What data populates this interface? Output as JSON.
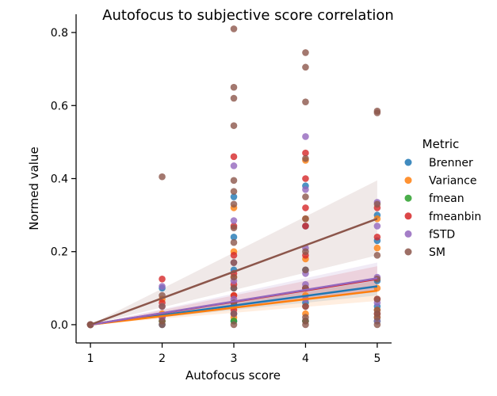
{
  "chart_data": {
    "type": "scatter",
    "title": "Autofocus to subjective score correlation",
    "xlabel": "Autofocus score",
    "ylabel": "Normed value",
    "xlim": [
      0.8,
      5.2
    ],
    "ylim": [
      -0.05,
      0.85
    ],
    "xticks": [
      "1",
      "2",
      "3",
      "4",
      "5"
    ],
    "yticks": [
      "0.0",
      "0.2",
      "0.4",
      "0.6",
      "0.8"
    ],
    "grid": false,
    "legend": {
      "title": "Metric",
      "placement": "right"
    },
    "series": [
      {
        "name": "Brenner",
        "color": "#1f77b4",
        "points": [
          [
            1,
            0
          ],
          [
            1,
            0
          ],
          [
            1,
            0
          ],
          [
            2,
            0.1
          ],
          [
            2,
            0.02
          ],
          [
            2,
            0.01
          ],
          [
            2,
            0
          ],
          [
            3,
            0.35
          ],
          [
            3,
            0.24
          ],
          [
            3,
            0.15
          ],
          [
            3,
            0.1
          ],
          [
            3,
            0.06
          ],
          [
            3,
            0.03
          ],
          [
            3,
            0.01
          ],
          [
            4,
            0.38
          ],
          [
            4,
            0.27
          ],
          [
            4,
            0.15
          ],
          [
            4,
            0.1
          ],
          [
            4,
            0.06
          ],
          [
            4,
            0.01
          ],
          [
            5,
            0.3
          ],
          [
            5,
            0.23
          ],
          [
            5,
            0.12
          ],
          [
            5,
            0.05
          ],
          [
            5,
            0.01
          ]
        ],
        "fit": [
          [
            1,
            0
          ],
          [
            5,
            0.105
          ]
        ],
        "ci": [
          [
            1,
            0,
            0
          ],
          [
            5,
            0.08,
            0.13
          ]
        ]
      },
      {
        "name": "Variance",
        "color": "#ff7f0e",
        "points": [
          [
            1,
            0
          ],
          [
            1,
            0
          ],
          [
            2,
            0.07
          ],
          [
            2,
            0.03
          ],
          [
            2,
            0.01
          ],
          [
            3,
            0.32
          ],
          [
            3,
            0.2
          ],
          [
            3,
            0.13
          ],
          [
            3,
            0.08
          ],
          [
            3,
            0.05
          ],
          [
            3,
            0.02
          ],
          [
            4,
            0.45
          ],
          [
            4,
            0.29
          ],
          [
            4,
            0.18
          ],
          [
            4,
            0.08
          ],
          [
            4,
            0.03
          ],
          [
            5,
            0.29
          ],
          [
            5,
            0.21
          ],
          [
            5,
            0.1
          ],
          [
            5,
            0.04
          ],
          [
            5,
            0.02
          ]
        ],
        "fit": [
          [
            1,
            0
          ],
          [
            5,
            0.093
          ]
        ],
        "ci": [
          [
            1,
            0,
            0
          ],
          [
            5,
            0.065,
            0.12
          ]
        ]
      },
      {
        "name": "fmean",
        "color": "#2ca02c",
        "points": [
          [
            1,
            0
          ],
          [
            2,
            0.01
          ],
          [
            3,
            0.01
          ],
          [
            4,
            0.01
          ],
          [
            5,
            0.01
          ]
        ],
        "fit": null,
        "ci": null
      },
      {
        "name": "fmeanbin",
        "color": "#d62728",
        "points": [
          [
            1,
            0
          ],
          [
            1,
            0
          ],
          [
            2,
            0.125
          ],
          [
            2,
            0.06
          ],
          [
            2,
            0.02
          ],
          [
            3,
            0.46
          ],
          [
            3,
            0.27
          ],
          [
            3,
            0.19
          ],
          [
            3,
            0.14
          ],
          [
            3,
            0.11
          ],
          [
            3,
            0.08
          ],
          [
            3,
            0.04
          ],
          [
            4,
            0.47
          ],
          [
            4,
            0.4
          ],
          [
            4,
            0.32
          ],
          [
            4,
            0.27
          ],
          [
            4,
            0.19
          ],
          [
            4,
            0.1
          ],
          [
            4,
            0.05
          ],
          [
            5,
            0.32
          ],
          [
            5,
            0.24
          ],
          [
            5,
            0.07
          ],
          [
            5,
            0.03
          ]
        ],
        "fit": [
          [
            1,
            0
          ],
          [
            5,
            0.125
          ]
        ],
        "ci": [
          [
            1,
            0,
            0
          ],
          [
            5,
            0.09,
            0.16
          ]
        ]
      },
      {
        "name": "fSTD",
        "color": "#9467bd",
        "points": [
          [
            1,
            0
          ],
          [
            1,
            0
          ],
          [
            2,
            0.105
          ],
          [
            2,
            0.05
          ],
          [
            2,
            0.02
          ],
          [
            3,
            0.435
          ],
          [
            3,
            0.285
          ],
          [
            3,
            0.17
          ],
          [
            3,
            0.12
          ],
          [
            3,
            0.07
          ],
          [
            3,
            0.03
          ],
          [
            4,
            0.515
          ],
          [
            4,
            0.37
          ],
          [
            4,
            0.21
          ],
          [
            4,
            0.14
          ],
          [
            4,
            0.11
          ],
          [
            4,
            0.07
          ],
          [
            5,
            0.335
          ],
          [
            5,
            0.27
          ],
          [
            5,
            0.13
          ],
          [
            5,
            0.06
          ],
          [
            5,
            0.01
          ]
        ],
        "fit": [
          [
            1,
            0
          ],
          [
            5,
            0.127
          ]
        ],
        "ci": [
          [
            1,
            0,
            0
          ],
          [
            5,
            0.09,
            0.17
          ]
        ]
      },
      {
        "name": "SM",
        "color": "#8c564b",
        "points": [
          [
            1,
            0
          ],
          [
            1,
            0
          ],
          [
            1,
            0
          ],
          [
            2,
            0.405
          ],
          [
            2,
            0.08
          ],
          [
            2,
            0.05
          ],
          [
            2,
            0.01
          ],
          [
            2,
            0
          ],
          [
            3,
            0.81
          ],
          [
            3,
            0.65
          ],
          [
            3,
            0.62
          ],
          [
            3,
            0.545
          ],
          [
            3,
            0.395
          ],
          [
            3,
            0.365
          ],
          [
            3,
            0.33
          ],
          [
            3,
            0.265
          ],
          [
            3,
            0.225
          ],
          [
            3,
            0.17
          ],
          [
            3,
            0.13
          ],
          [
            3,
            0.1
          ],
          [
            3,
            0.06
          ],
          [
            3,
            0.03
          ],
          [
            3,
            0
          ],
          [
            4,
            0.745
          ],
          [
            4,
            0.705
          ],
          [
            4,
            0.61
          ],
          [
            4,
            0.455
          ],
          [
            4,
            0.35
          ],
          [
            4,
            0.29
          ],
          [
            4,
            0.2
          ],
          [
            4,
            0.15
          ],
          [
            4,
            0.1
          ],
          [
            4,
            0.05
          ],
          [
            4,
            0.02
          ],
          [
            4,
            0.01
          ],
          [
            4,
            0
          ],
          [
            5,
            0.585
          ],
          [
            5,
            0.58
          ],
          [
            5,
            0.33
          ],
          [
            5,
            0.19
          ],
          [
            5,
            0.125
          ],
          [
            5,
            0.07
          ],
          [
            5,
            0.04
          ],
          [
            5,
            0.03
          ],
          [
            5,
            0.02
          ],
          [
            5,
            0
          ]
        ],
        "fit": [
          [
            1,
            0
          ],
          [
            5,
            0.29
          ]
        ],
        "ci": [
          [
            1,
            0,
            0
          ],
          [
            5,
            0.19,
            0.395
          ]
        ]
      }
    ]
  }
}
